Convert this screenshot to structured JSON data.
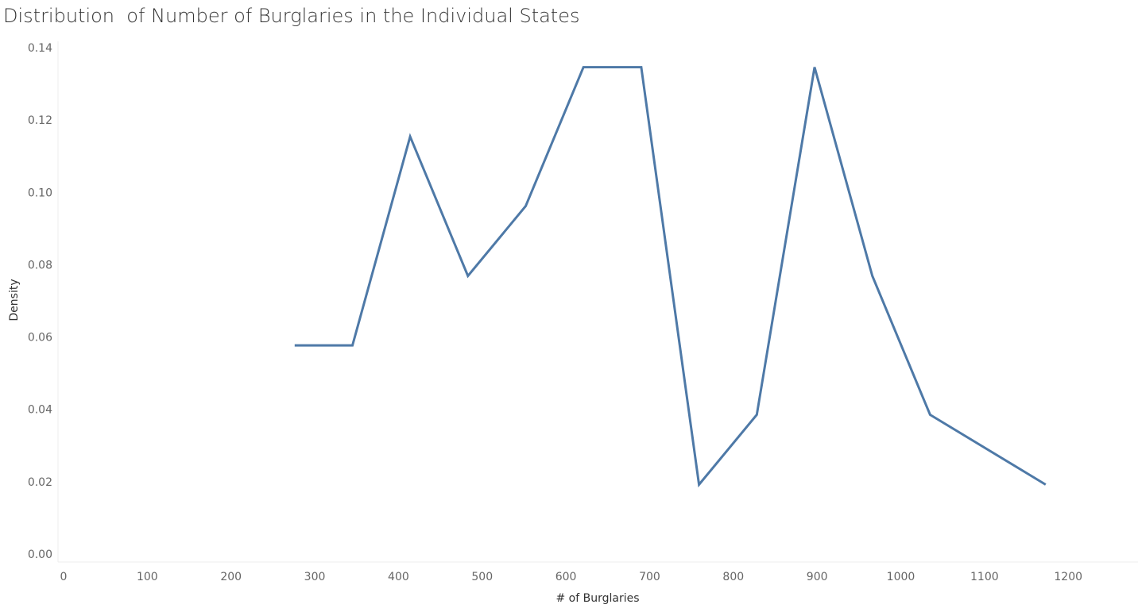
{
  "chart_data": {
    "type": "line",
    "title": "Distribution  of Number of Burglaries in the Individual States",
    "xlabel": "# of Burglaries",
    "ylabel": "Density",
    "xlim": [
      0,
      1280
    ],
    "ylim": [
      0,
      0.14
    ],
    "x_ticks": [
      "0",
      "100",
      "200",
      "300",
      "400",
      "500",
      "600",
      "700",
      "800",
      "900",
      "1000",
      "1100",
      "1200"
    ],
    "y_ticks": [
      "0.00",
      "0.02",
      "0.04",
      "0.06",
      "0.08",
      "0.10",
      "0.12",
      "0.14"
    ],
    "grid": false,
    "line_color": "#4e79a7",
    "series": [
      {
        "x": [
          276,
          345,
          414,
          483,
          552,
          621,
          690,
          759,
          828,
          897,
          966,
          1035,
          1173
        ],
        "y": [
          0.0577,
          0.0577,
          0.1154,
          0.0769,
          0.0962,
          0.1346,
          0.1346,
          0.0192,
          0.0385,
          0.1346,
          0.0769,
          0.0385,
          0.0192
        ]
      }
    ]
  }
}
